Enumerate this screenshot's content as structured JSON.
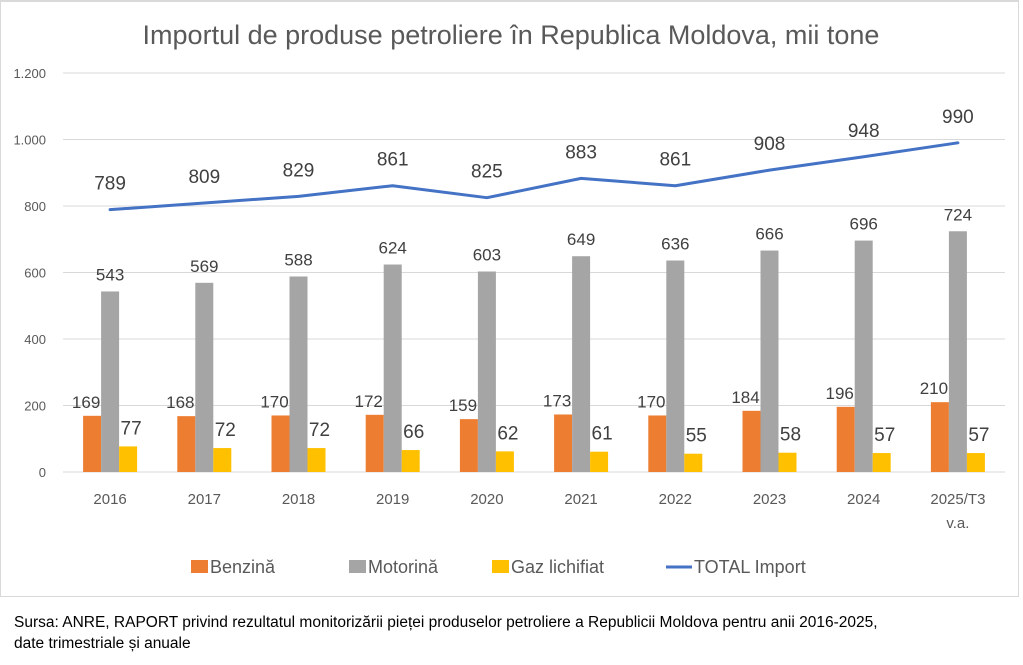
{
  "chart_data": {
    "type": "bar",
    "title": "Importul de produse petroliere în Republica Moldova, mii tone",
    "xlabel": "",
    "ylabel": "",
    "ylim": [
      0,
      1200
    ],
    "yticks": [
      0,
      200,
      400,
      600,
      800,
      1000,
      1200
    ],
    "ytick_labels": [
      "0",
      "200",
      "400",
      "600",
      "800",
      "1.000",
      "1.200"
    ],
    "grid": true,
    "legend_position": "bottom",
    "categories": [
      "2016",
      "2017",
      "2018",
      "2019",
      "2020",
      "2021",
      "2022",
      "2023",
      "2024",
      "2025/T3 v.a."
    ],
    "category_lines": [
      [
        "2016"
      ],
      [
        "2017"
      ],
      [
        "2018"
      ],
      [
        "2019"
      ],
      [
        "2020"
      ],
      [
        "2021"
      ],
      [
        "2022"
      ],
      [
        "2023"
      ],
      [
        "2024"
      ],
      [
        "2025/T3",
        "v.a."
      ]
    ],
    "series": [
      {
        "name": "Benzină",
        "type": "bar",
        "color": "#ED7D31",
        "values": [
          169,
          168,
          170,
          172,
          159,
          173,
          170,
          184,
          196,
          210
        ]
      },
      {
        "name": "Motorină",
        "type": "bar",
        "color": "#A5A5A5",
        "values": [
          543,
          569,
          588,
          624,
          603,
          649,
          636,
          666,
          696,
          724
        ]
      },
      {
        "name": "Gaz lichifiat",
        "type": "bar",
        "color": "#FFC000",
        "values": [
          77,
          72,
          72,
          66,
          62,
          61,
          55,
          58,
          57,
          57
        ]
      },
      {
        "name": "TOTAL Import",
        "type": "line",
        "color": "#4472C4",
        "values": [
          789,
          809,
          829,
          861,
          825,
          883,
          861,
          908,
          948,
          990
        ]
      }
    ]
  },
  "source_note": {
    "line1": "Sursa: ANRE, RAPORT privind rezultatul monitorizării pieței produselor petroliere a Republicii Moldova  pentru anii 2016-2025,",
    "line2": "date trimestriale și anuale"
  }
}
